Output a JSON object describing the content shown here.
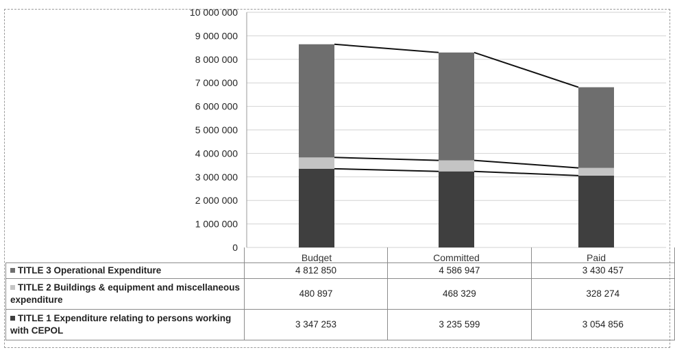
{
  "chart_data": {
    "type": "bar",
    "stacked": true,
    "title": "",
    "categories": [
      "Budget",
      "Committed",
      "Paid"
    ],
    "series": [
      {
        "name": "TITLE 3  Operational Expenditure",
        "values": [
          4812850,
          4586947,
          3430457
        ],
        "values_text": [
          "4 812 850",
          "4 586 947",
          "3 430 457"
        ],
        "color": "#6e6e6e"
      },
      {
        "name": "TITLE 2  Buildings & equipment and miscellaneous expenditure",
        "values": [
          480897,
          468329,
          328274
        ],
        "values_text": [
          "480 897",
          "468 329",
          "328 274"
        ],
        "color": "#c4c4c4"
      },
      {
        "name": "TITLE 1  Expenditure relating to persons working with CEPOL",
        "values": [
          3347253,
          3235599,
          3054856
        ],
        "values_text": [
          "3 347 253",
          "3 235 599",
          "3 054 856"
        ],
        "color": "#3f3f3f"
      }
    ],
    "y_ticks": [
      "0",
      "1 000 000",
      "2 000 000",
      "3 000 000",
      "4 000 000",
      "5 000 000",
      "6 000 000",
      "7 000 000",
      "8 000 000",
      "9 000 000",
      "10 000 000"
    ],
    "ylim": [
      0,
      10000000
    ],
    "grid": true,
    "series_lines": true,
    "legend": "data-table"
  }
}
